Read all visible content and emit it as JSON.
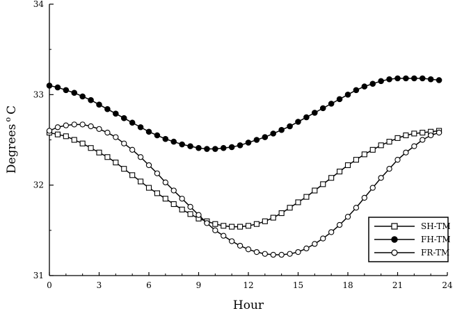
{
  "chart_data": {
    "type": "line",
    "title": "",
    "xlabel": "Hour",
    "ylabel_main": "Degrees",
    "ylabel_sup": "o",
    "ylabel_unit": "C",
    "xlim": [
      0,
      24
    ],
    "ylim": [
      31,
      34
    ],
    "xticks": [
      0,
      3,
      6,
      9,
      12,
      15,
      18,
      21,
      24
    ],
    "yticks": [
      31,
      32,
      33,
      34
    ],
    "grid": false,
    "legend_position": "bottom-right",
    "colors": {
      "line": "#000000",
      "open_fill": "#ffffff"
    },
    "series": [
      {
        "name": "SH-TM",
        "marker": "square-open",
        "x": [
          0,
          0.5,
          1,
          1.5,
          2,
          2.5,
          3,
          3.5,
          4,
          4.5,
          5,
          5.5,
          6,
          6.5,
          7,
          7.5,
          8,
          8.5,
          9,
          9.5,
          10,
          10.5,
          11,
          11.5,
          12,
          12.5,
          13,
          13.5,
          14,
          14.5,
          15,
          15.5,
          16,
          16.5,
          17,
          17.5,
          18,
          18.5,
          19,
          19.5,
          20,
          20.5,
          21,
          21.5,
          22,
          22.5,
          23,
          23.5
        ],
        "values": [
          32.58,
          32.56,
          32.54,
          32.5,
          32.46,
          32.41,
          32.36,
          32.31,
          32.25,
          32.18,
          32.11,
          32.04,
          31.97,
          31.91,
          31.85,
          31.79,
          31.73,
          31.68,
          31.63,
          31.6,
          31.57,
          31.55,
          31.54,
          31.54,
          31.55,
          31.57,
          31.6,
          31.64,
          31.69,
          31.75,
          31.81,
          31.87,
          31.94,
          32.01,
          32.08,
          32.15,
          32.22,
          32.28,
          32.34,
          32.39,
          32.44,
          32.48,
          32.52,
          32.55,
          32.57,
          32.58,
          32.59,
          32.6
        ]
      },
      {
        "name": "FH-TM",
        "marker": "circle-filled",
        "x": [
          0,
          0.5,
          1,
          1.5,
          2,
          2.5,
          3,
          3.5,
          4,
          4.5,
          5,
          5.5,
          6,
          6.5,
          7,
          7.5,
          8,
          8.5,
          9,
          9.5,
          10,
          10.5,
          11,
          11.5,
          12,
          12.5,
          13,
          13.5,
          14,
          14.5,
          15,
          15.5,
          16,
          16.5,
          17,
          17.5,
          18,
          18.5,
          19,
          19.5,
          20,
          20.5,
          21,
          21.5,
          22,
          22.5,
          23,
          23.5
        ],
        "values": [
          33.1,
          33.08,
          33.05,
          33.02,
          32.98,
          32.94,
          32.89,
          32.84,
          32.79,
          32.74,
          32.69,
          32.64,
          32.59,
          32.55,
          32.51,
          32.48,
          32.45,
          32.43,
          32.41,
          32.4,
          32.4,
          32.41,
          32.42,
          32.44,
          32.47,
          32.5,
          32.53,
          32.57,
          32.61,
          32.65,
          32.7,
          32.75,
          32.8,
          32.85,
          32.9,
          32.95,
          33.0,
          33.05,
          33.09,
          33.12,
          33.15,
          33.17,
          33.18,
          33.18,
          33.18,
          33.18,
          33.17,
          33.16
        ]
      },
      {
        "name": "FR-TM",
        "marker": "circle-open",
        "x": [
          0,
          0.5,
          1,
          1.5,
          2,
          2.5,
          3,
          3.5,
          4,
          4.5,
          5,
          5.5,
          6,
          6.5,
          7,
          7.5,
          8,
          8.5,
          9,
          9.5,
          10,
          10.5,
          11,
          11.5,
          12,
          12.5,
          13,
          13.5,
          14,
          14.5,
          15,
          15.5,
          16,
          16.5,
          17,
          17.5,
          18,
          18.5,
          19,
          19.5,
          20,
          20.5,
          21,
          21.5,
          22,
          22.5,
          23,
          23.5
        ],
        "values": [
          32.6,
          32.64,
          32.66,
          32.67,
          32.67,
          32.65,
          32.62,
          32.58,
          32.53,
          32.46,
          32.39,
          32.31,
          32.22,
          32.13,
          32.03,
          31.94,
          31.85,
          31.76,
          31.67,
          31.58,
          31.5,
          31.44,
          31.38,
          31.33,
          31.29,
          31.26,
          31.24,
          31.23,
          31.23,
          31.24,
          31.26,
          31.3,
          31.35,
          31.41,
          31.48,
          31.56,
          31.65,
          31.75,
          31.86,
          31.97,
          32.08,
          32.18,
          32.28,
          32.36,
          32.43,
          32.5,
          32.55,
          32.58
        ]
      }
    ]
  }
}
